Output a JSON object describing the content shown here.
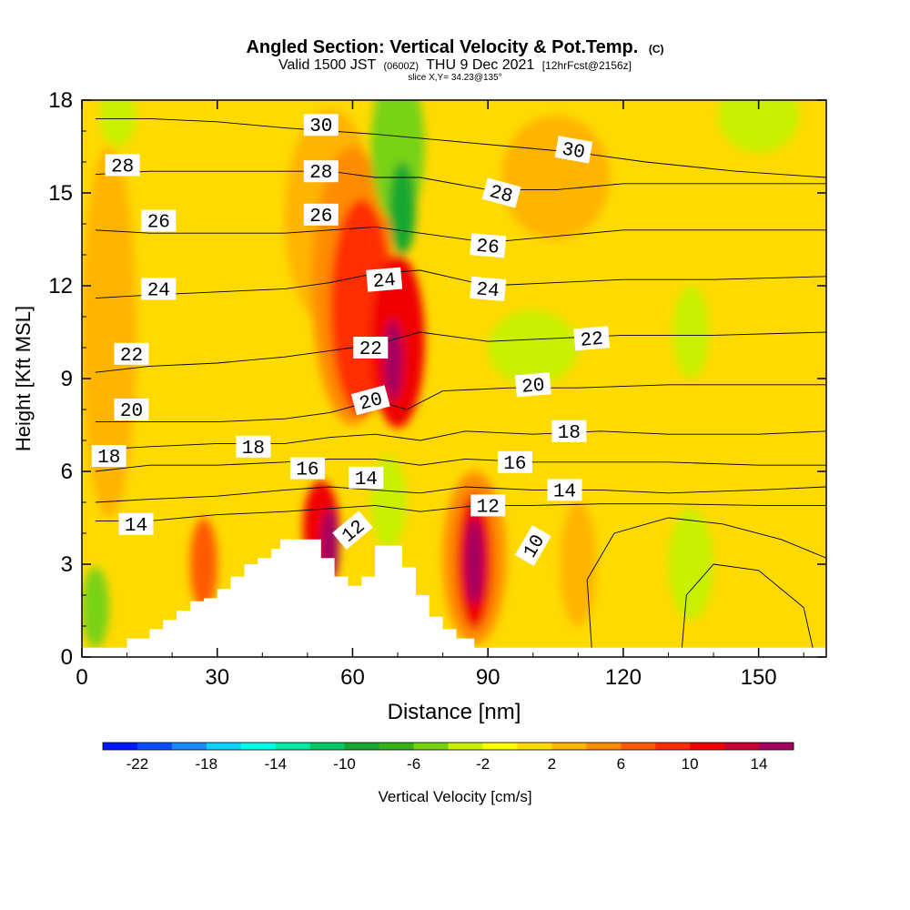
{
  "header": {
    "title": "Angled Section: Vertical Velocity & Pot.Temp.",
    "title_unit": "(C)",
    "valid_prefix": "Valid 1500 JST",
    "valid_utc": "(0600Z)",
    "valid_date": "THU 9 Dec 2021",
    "forecast": "[12hrFcst@2156z]",
    "slice": "slice X,Y= 34.23@135°"
  },
  "chart_data": {
    "type": "heatmap",
    "xlabel": "Distance [nm]",
    "ylabel": "Height [Kft MSL]",
    "xlim": [
      0,
      165
    ],
    "ylim": [
      0,
      18
    ],
    "xticks": [
      0,
      30,
      60,
      90,
      120,
      150
    ],
    "yticks": [
      0,
      3,
      6,
      9,
      12,
      15,
      18
    ],
    "grid": false,
    "background_field": {
      "name": "Vertical Velocity",
      "units": "cm/s",
      "value": 0
    },
    "field_blobs": [
      {
        "x": 55,
        "y": 14.2,
        "rx": 10,
        "ry": 3.5,
        "value": 2
      },
      {
        "x": 60,
        "y": 12,
        "rx": 9,
        "ry": 4.5,
        "value": 5
      },
      {
        "x": 62,
        "y": 11.3,
        "rx": 7,
        "ry": 3.5,
        "value": 8
      },
      {
        "x": 70,
        "y": 10.2,
        "rx": 6,
        "ry": 2.8,
        "value": 10
      },
      {
        "x": 69,
        "y": 9.6,
        "rx": 2,
        "ry": 1.3,
        "value": 14
      },
      {
        "x": 70,
        "y": 16.5,
        "rx": 6,
        "ry": 2.5,
        "value": -6
      },
      {
        "x": 71,
        "y": 14.5,
        "rx": 3,
        "ry": 1.5,
        "value": -10
      },
      {
        "x": 87,
        "y": 3.2,
        "rx": 7,
        "ry": 2.8,
        "value": 5
      },
      {
        "x": 87,
        "y": 3.1,
        "rx": 4,
        "ry": 2.2,
        "value": 10
      },
      {
        "x": 87,
        "y": 3.1,
        "rx": 2,
        "ry": 1.4,
        "value": 14
      },
      {
        "x": 53,
        "y": 4.2,
        "rx": 4,
        "ry": 1.5,
        "value": 10
      },
      {
        "x": 55,
        "y": 3.6,
        "rx": 2,
        "ry": 1.2,
        "value": 14
      },
      {
        "x": 27,
        "y": 3,
        "rx": 3,
        "ry": 1.5,
        "value": 6
      },
      {
        "x": 6,
        "y": 10.5,
        "rx": 6,
        "ry": 6,
        "value": 2
      },
      {
        "x": 105,
        "y": 15.5,
        "rx": 12,
        "ry": 2,
        "value": 2
      },
      {
        "x": 100,
        "y": 10,
        "rx": 10,
        "ry": 1.2,
        "value": -4
      },
      {
        "x": 135,
        "y": 10.5,
        "rx": 4,
        "ry": 1.5,
        "value": -4
      },
      {
        "x": 3,
        "y": 1.6,
        "rx": 3,
        "ry": 1.3,
        "value": -6
      },
      {
        "x": 135,
        "y": 3,
        "rx": 5,
        "ry": 1.8,
        "value": -4
      },
      {
        "x": 68,
        "y": 5,
        "rx": 4,
        "ry": 1.5,
        "value": -4
      },
      {
        "x": 150,
        "y": 17.5,
        "rx": 9,
        "ry": 1.2,
        "value": -4
      },
      {
        "x": 8,
        "y": 17.5,
        "rx": 4,
        "ry": 1,
        "value": -4
      },
      {
        "x": 110,
        "y": 3,
        "rx": 4,
        "ry": 2,
        "value": 3
      }
    ],
    "terrain": [
      [
        0,
        0.3
      ],
      [
        10,
        0.3
      ],
      [
        10,
        0.6
      ],
      [
        15,
        0.6
      ],
      [
        15,
        0.9
      ],
      [
        18,
        0.9
      ],
      [
        18,
        1.2
      ],
      [
        21,
        1.2
      ],
      [
        21,
        1.5
      ],
      [
        24,
        1.5
      ],
      [
        24,
        1.8
      ],
      [
        27,
        1.8
      ],
      [
        27,
        1.9
      ],
      [
        30,
        1.9
      ],
      [
        30,
        2.2
      ],
      [
        33,
        2.2
      ],
      [
        33,
        2.6
      ],
      [
        36,
        2.6
      ],
      [
        36,
        3.0
      ],
      [
        39,
        3.0
      ],
      [
        39,
        3.2
      ],
      [
        42,
        3.2
      ],
      [
        42,
        3.5
      ],
      [
        44,
        3.5
      ],
      [
        44,
        3.8
      ],
      [
        53,
        3.8
      ],
      [
        53,
        3.2
      ],
      [
        56,
        3.2
      ],
      [
        56,
        2.6
      ],
      [
        59,
        2.6
      ],
      [
        59,
        2.3
      ],
      [
        62,
        2.3
      ],
      [
        62,
        2.6
      ],
      [
        65,
        2.6
      ],
      [
        65,
        3.6
      ],
      [
        71,
        3.6
      ],
      [
        71,
        2.9
      ],
      [
        74,
        2.9
      ],
      [
        74,
        2.0
      ],
      [
        77,
        2.0
      ],
      [
        77,
        1.3
      ],
      [
        80,
        1.3
      ],
      [
        80,
        0.9
      ],
      [
        83,
        0.9
      ],
      [
        83,
        0.6
      ],
      [
        87,
        0.6
      ],
      [
        87,
        0.3
      ],
      [
        165,
        0.3
      ]
    ],
    "contours": [
      {
        "label": "10",
        "points": [
          [
            113,
            0.3
          ],
          [
            112,
            2.5
          ],
          [
            118,
            4
          ],
          [
            130,
            4.5
          ],
          [
            142,
            4.3
          ],
          [
            155,
            3.8
          ],
          [
            165,
            3.2
          ]
        ]
      },
      {
        "label": "10",
        "points": [
          [
            133,
            0.3
          ],
          [
            134,
            2
          ],
          [
            140,
            3
          ],
          [
            150,
            2.8
          ],
          [
            160,
            1.6
          ],
          [
            162,
            0.3
          ]
        ]
      },
      {
        "label": "12",
        "points": [
          [
            3,
            4.4
          ],
          [
            15,
            4.4
          ],
          [
            30,
            4.6
          ],
          [
            45,
            4.7
          ],
          [
            55,
            4.8
          ],
          [
            65,
            4.9
          ],
          [
            75,
            4.7
          ],
          [
            88,
            4.9
          ],
          [
            100,
            4.9
          ],
          [
            115,
            4.95
          ],
          [
            130,
            4.95
          ],
          [
            150,
            4.9
          ],
          [
            165,
            4.9
          ]
        ]
      },
      {
        "label": "14",
        "points": [
          [
            3,
            5.0
          ],
          [
            15,
            5.1
          ],
          [
            30,
            5.2
          ],
          [
            45,
            5.4
          ],
          [
            55,
            5.5
          ],
          [
            65,
            5.4
          ],
          [
            75,
            5.3
          ],
          [
            85,
            5.5
          ],
          [
            100,
            5.4
          ],
          [
            115,
            5.4
          ],
          [
            130,
            5.3
          ],
          [
            150,
            5.4
          ],
          [
            165,
            5.5
          ]
        ]
      },
      {
        "label": "16",
        "points": [
          [
            3,
            6.0
          ],
          [
            15,
            6.2
          ],
          [
            30,
            6.2
          ],
          [
            45,
            6.3
          ],
          [
            55,
            6.4
          ],
          [
            65,
            6.4
          ],
          [
            75,
            6.2
          ],
          [
            85,
            6.4
          ],
          [
            100,
            6.3
          ],
          [
            115,
            6.3
          ],
          [
            130,
            6.3
          ],
          [
            150,
            6.2
          ],
          [
            165,
            6.2
          ]
        ]
      },
      {
        "label": "18",
        "points": [
          [
            3,
            6.7
          ],
          [
            15,
            6.8
          ],
          [
            30,
            6.9
          ],
          [
            45,
            6.9
          ],
          [
            55,
            7.1
          ],
          [
            65,
            7.2
          ],
          [
            75,
            7.0
          ],
          [
            85,
            7.3
          ],
          [
            100,
            7.2
          ],
          [
            115,
            7.3
          ],
          [
            130,
            7.2
          ],
          [
            150,
            7.2
          ],
          [
            165,
            7.3
          ]
        ]
      },
      {
        "label": "20",
        "points": [
          [
            3,
            7.6
          ],
          [
            15,
            7.6
          ],
          [
            30,
            7.6
          ],
          [
            45,
            7.7
          ],
          [
            55,
            7.9
          ],
          [
            65,
            8.3
          ],
          [
            72,
            8.0
          ],
          [
            80,
            8.6
          ],
          [
            95,
            8.7
          ],
          [
            110,
            8.7
          ],
          [
            130,
            8.8
          ],
          [
            150,
            8.8
          ],
          [
            165,
            8.8
          ]
        ]
      },
      {
        "label": "22",
        "points": [
          [
            3,
            9.2
          ],
          [
            15,
            9.4
          ],
          [
            30,
            9.5
          ],
          [
            45,
            9.7
          ],
          [
            55,
            9.9
          ],
          [
            65,
            10.1
          ],
          [
            75,
            10.5
          ],
          [
            90,
            10.2
          ],
          [
            105,
            10.3
          ],
          [
            120,
            10.4
          ],
          [
            140,
            10.4
          ],
          [
            165,
            10.5
          ]
        ]
      },
      {
        "label": "24",
        "points": [
          [
            3,
            11.6
          ],
          [
            15,
            11.7
          ],
          [
            30,
            11.8
          ],
          [
            45,
            11.9
          ],
          [
            55,
            12.1
          ],
          [
            65,
            12.4
          ],
          [
            75,
            12.5
          ],
          [
            90,
            12.0
          ],
          [
            105,
            12.1
          ],
          [
            120,
            12.2
          ],
          [
            140,
            12.2
          ],
          [
            165,
            12.3
          ]
        ]
      },
      {
        "label": "26",
        "points": [
          [
            3,
            13.8
          ],
          [
            15,
            13.7
          ],
          [
            30,
            13.7
          ],
          [
            45,
            13.7
          ],
          [
            55,
            13.8
          ],
          [
            65,
            13.9
          ],
          [
            75,
            13.7
          ],
          [
            90,
            13.4
          ],
          [
            105,
            13.6
          ],
          [
            120,
            13.8
          ],
          [
            140,
            13.8
          ],
          [
            165,
            13.8
          ]
        ]
      },
      {
        "label": "28",
        "points": [
          [
            3,
            15.6
          ],
          [
            15,
            15.7
          ],
          [
            30,
            15.7
          ],
          [
            45,
            15.7
          ],
          [
            55,
            15.7
          ],
          [
            65,
            15.5
          ],
          [
            75,
            15.5
          ],
          [
            90,
            15.1
          ],
          [
            105,
            15.1
          ],
          [
            120,
            15.3
          ],
          [
            140,
            15.3
          ],
          [
            165,
            15.3
          ]
        ]
      },
      {
        "label": "30",
        "points": [
          [
            3,
            17.4
          ],
          [
            15,
            17.4
          ],
          [
            30,
            17.3
          ],
          [
            45,
            17.1
          ],
          [
            55,
            17.0
          ],
          [
            65,
            16.9
          ],
          [
            80,
            16.7
          ],
          [
            95,
            16.5
          ],
          [
            110,
            16.3
          ],
          [
            125,
            16.0
          ],
          [
            145,
            15.7
          ],
          [
            165,
            15.5
          ]
        ]
      }
    ],
    "contour_labels": [
      {
        "text": "30",
        "x": 53,
        "y": 17.2,
        "angle": 0
      },
      {
        "text": "28",
        "x": 53,
        "y": 15.7,
        "angle": 0
      },
      {
        "text": "26",
        "x": 53,
        "y": 14.3,
        "angle": 0
      },
      {
        "text": "24",
        "x": 67,
        "y": 12.2,
        "angle": -5
      },
      {
        "text": "22",
        "x": 64,
        "y": 10.0,
        "angle": 0
      },
      {
        "text": "20",
        "x": 64,
        "y": 8.3,
        "angle": -15
      },
      {
        "text": "16",
        "x": 50,
        "y": 6.1,
        "angle": 0
      },
      {
        "text": "14",
        "x": 63,
        "y": 5.8,
        "angle": 0
      },
      {
        "text": "12",
        "x": 60,
        "y": 4.1,
        "angle": -40
      },
      {
        "text": "18",
        "x": 38,
        "y": 6.8,
        "angle": 0
      },
      {
        "text": "28",
        "x": 9,
        "y": 15.9,
        "angle": 0
      },
      {
        "text": "26",
        "x": 17,
        "y": 14.1,
        "angle": 0
      },
      {
        "text": "24",
        "x": 17,
        "y": 11.9,
        "angle": 0
      },
      {
        "text": "22",
        "x": 11,
        "y": 9.8,
        "angle": 0
      },
      {
        "text": "20",
        "x": 11,
        "y": 8.0,
        "angle": 0
      },
      {
        "text": "18",
        "x": 6,
        "y": 6.5,
        "angle": 0
      },
      {
        "text": "14",
        "x": 12,
        "y": 4.3,
        "angle": 0
      },
      {
        "text": "30",
        "x": 109,
        "y": 16.4,
        "angle": 10
      },
      {
        "text": "28",
        "x": 93,
        "y": 15.0,
        "angle": 15
      },
      {
        "text": "26",
        "x": 90,
        "y": 13.3,
        "angle": 5
      },
      {
        "text": "24",
        "x": 90,
        "y": 11.9,
        "angle": 5
      },
      {
        "text": "22",
        "x": 113,
        "y": 10.3,
        "angle": -5
      },
      {
        "text": "20",
        "x": 100,
        "y": 8.8,
        "angle": -5
      },
      {
        "text": "18",
        "x": 108,
        "y": 7.3,
        "angle": 0
      },
      {
        "text": "16",
        "x": 96,
        "y": 6.3,
        "angle": 0
      },
      {
        "text": "14",
        "x": 107,
        "y": 5.4,
        "angle": 0
      },
      {
        "text": "12",
        "x": 90,
        "y": 4.9,
        "angle": 0
      },
      {
        "text": "10",
        "x": 100,
        "y": 3.6,
        "angle": -60
      }
    ],
    "colorbar": {
      "label": "Vertical Velocity [cm/s]",
      "tick_labels": [
        "-22",
        "-18",
        "-14",
        "-10",
        "-6",
        "-2",
        "2",
        "6",
        "10",
        "14"
      ],
      "boundaries": [
        -24,
        -22,
        -20,
        -18,
        -16,
        -14,
        -12,
        -10,
        -8,
        -6,
        -4,
        -2,
        0,
        2,
        4,
        6,
        8,
        10,
        12,
        14,
        16
      ],
      "colors": [
        "#0018ff",
        "#0a4cff",
        "#1b88ff",
        "#0bd2ff",
        "#00ffe6",
        "#05e8a6",
        "#00c864",
        "#16a82e",
        "#36b21a",
        "#78d214",
        "#c8f000",
        "#ffff00",
        "#ffda00",
        "#ffb400",
        "#ff8c00",
        "#ff5a00",
        "#ff2d00",
        "#f00000",
        "#c80032",
        "#a00060"
      ]
    }
  }
}
